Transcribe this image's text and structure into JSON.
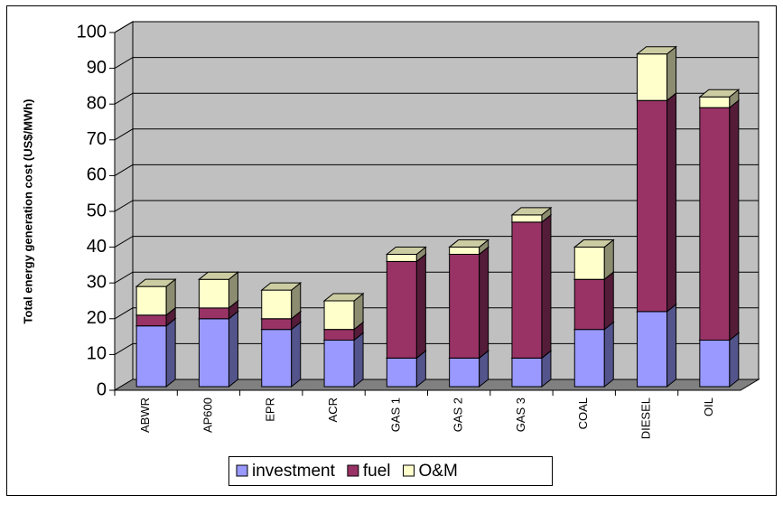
{
  "chart_data": {
    "type": "bar3d_stacked",
    "y_label": "Total energy generation cost (US$/MWh)",
    "categories": [
      "ABWR",
      "AP600",
      "EPR",
      "ACR",
      "GAS 1",
      "GAS 2",
      "GAS 3",
      "COAL",
      "DIESEL",
      "OIL"
    ],
    "series": [
      {
        "name": "investment",
        "color": "#9999ff",
        "values": [
          17,
          19,
          16,
          13,
          8,
          8,
          8,
          16,
          21,
          13
        ]
      },
      {
        "name": "fuel",
        "color": "#993366",
        "values": [
          3,
          3,
          3,
          3,
          27,
          29,
          38,
          14,
          59,
          65
        ]
      },
      {
        "name": "O&M",
        "color": "#ffffcc",
        "values": [
          8,
          8,
          8,
          8,
          2,
          2,
          2,
          9,
          13,
          3
        ]
      }
    ],
    "ylim": [
      0,
      100
    ],
    "yticks": [
      0,
      10,
      20,
      30,
      40,
      50,
      60,
      70,
      80,
      90,
      100
    ],
    "grid": true
  }
}
